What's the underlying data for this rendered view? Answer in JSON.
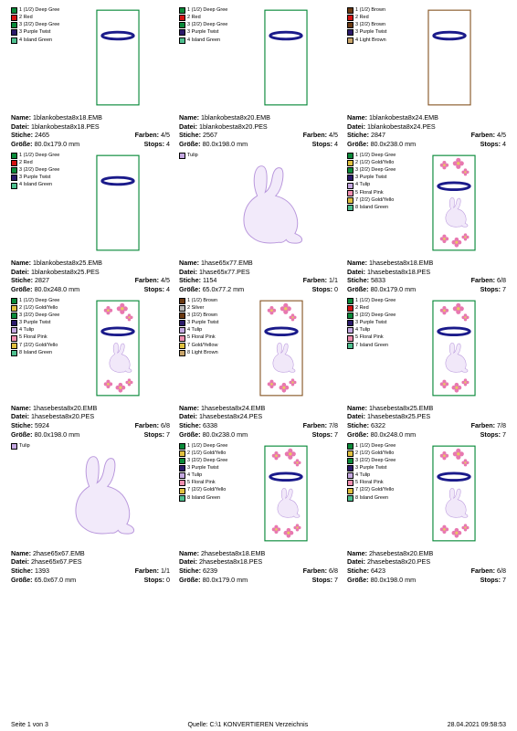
{
  "footer": {
    "page": "Seite 1 von 3",
    "source": "Quelle: C:\\1 KONVERTIEREN Verzeichnis",
    "timestamp": "28.04.2021 09:58:53"
  },
  "legends": {
    "A": [
      {
        "c": "#0a8a3a",
        "t": "1 (1/2) Deep Gree"
      },
      {
        "c": "#d41212",
        "t": "2 Red"
      },
      {
        "c": "#0a8a3a",
        "t": "3 (2/2) Deep Gree"
      },
      {
        "c": "#2b1a6b",
        "t": "3 Purple Twist"
      },
      {
        "c": "#4fbf8f",
        "t": "4 Island Green"
      }
    ],
    "B": [
      {
        "c": "#6b3a12",
        "t": "1 (1/2) Brown"
      },
      {
        "c": "#d41212",
        "t": "2 Red"
      },
      {
        "c": "#6b3a12",
        "t": "3 (2/2) Brown"
      },
      {
        "c": "#2b1a6b",
        "t": "3 Purple Twist"
      },
      {
        "c": "#c9a56b",
        "t": "4 Light Brown"
      }
    ],
    "T": [
      {
        "c": "#c4a8e0",
        "t": "Tulip"
      }
    ],
    "C8": [
      {
        "c": "#0a8a3a",
        "t": "1 (1/2) Deep Gree"
      },
      {
        "c": "#e0c040",
        "t": "2 (1/2) Gold/Yello"
      },
      {
        "c": "#0a8a3a",
        "t": "3 (2/2) Deep Gree"
      },
      {
        "c": "#2b1a6b",
        "t": "3 Purple Twist"
      },
      {
        "c": "#c4a8e0",
        "t": "4 Tulip"
      },
      {
        "c": "#f08fb0",
        "t": "5 Floral Pink"
      },
      {
        "c": "#e0c040",
        "t": "7 (2/2) Gold/Yello"
      },
      {
        "c": "#4fbf8f",
        "t": "8 Island Green"
      }
    ],
    "C7": [
      {
        "c": "#0a8a3a",
        "t": "1 (1/2) Deep Gree"
      },
      {
        "c": "#d41212",
        "t": "2 Red"
      },
      {
        "c": "#0a8a3a",
        "t": "3 (2/2) Deep Gree"
      },
      {
        "c": "#2b1a6b",
        "t": "3 Purple Twist"
      },
      {
        "c": "#c4a8e0",
        "t": "4 Tulip"
      },
      {
        "c": "#f08fb0",
        "t": "5 Floral Pink"
      },
      {
        "c": "#4fbf8f",
        "t": "7 Island Green"
      }
    ],
    "D": [
      {
        "c": "#6b3a12",
        "t": "1 (1/2) Brown"
      },
      {
        "c": "#b8b8b8",
        "t": "2 Silver"
      },
      {
        "c": "#6b3a12",
        "t": "3 (2/2) Brown"
      },
      {
        "c": "#2b1a6b",
        "t": "3 Purple Twist"
      },
      {
        "c": "#c4a8e0",
        "t": "4 Tulip"
      },
      {
        "c": "#f08fb0",
        "t": "5 Floral Pink"
      },
      {
        "c": "#e0c040",
        "t": "7 Gold/Yellow"
      },
      {
        "c": "#c9a56b",
        "t": "8 Light Brown"
      }
    ]
  },
  "cells": [
    {
      "legend": "A",
      "thumb": "ring_tall",
      "border": "#0a8a3a",
      "nameEmb": "1blankobesta8x18.EMB",
      "datei": "1blankobesta8x18.PES",
      "stiche": "2465",
      "farben": "4/5",
      "groesse": "80.0x179.0 mm",
      "stops": "4"
    },
    {
      "legend": "A",
      "thumb": "ring_tall",
      "border": "#0a8a3a",
      "nameEmb": "1blankobesta8x20.EMB",
      "datei": "1blankobesta8x20.PES",
      "stiche": "2567",
      "farben": "4/5",
      "groesse": "80.0x198.0 mm",
      "stops": "4"
    },
    {
      "legend": "B",
      "thumb": "ring_tall",
      "border": "#8a5a2a",
      "nameEmb": "1blankobesta8x24.EMB",
      "datei": "1blankobesta8x24.PES",
      "stiche": "2847",
      "farben": "4/5",
      "groesse": "80.0x238.0 mm",
      "stops": "4"
    },
    {
      "legend": "A",
      "thumb": "ring_tall",
      "border": "#0a8a3a",
      "nameEmb": "1blankobesta8x25.EMB",
      "datei": "1blankobesta8x25.PES",
      "stiche": "2827",
      "farben": "4/5",
      "groesse": "80.0x248.0 mm",
      "stops": "4"
    },
    {
      "legend": "T",
      "thumb": "bunny_big",
      "border": "none",
      "nameEmb": "1hase65x77.EMB",
      "datei": "1hase65x77.PES",
      "stiche": "1154",
      "farben": "1/1",
      "groesse": "65.0x77.2 mm",
      "stops": "0"
    },
    {
      "legend": "C8",
      "thumb": "bunny_flowers",
      "border": "#0a8a3a",
      "nameEmb": "1hasebesta8x18.EMB",
      "datei": "1hasebesta8x18.PES",
      "stiche": "5833",
      "farben": "6/8",
      "groesse": "80.0x179.0 mm",
      "stops": "7"
    },
    {
      "legend": "C8",
      "thumb": "bunny_flowers",
      "border": "#0a8a3a",
      "nameEmb": "1hasebesta8x20.EMB",
      "datei": "1hasebesta8x20.PES",
      "stiche": "5924",
      "farben": "6/8",
      "groesse": "80.0x198.0 mm",
      "stops": "7"
    },
    {
      "legend": "D",
      "thumb": "bunny_flowers",
      "border": "#8a5a2a",
      "nameEmb": "1hasebesta8x24.EMB",
      "datei": "1hasebesta8x24.PES",
      "stiche": "6338",
      "farben": "7/8",
      "groesse": "80.0x238.0 mm",
      "stops": "7"
    },
    {
      "legend": "C7",
      "thumb": "bunny_flowers",
      "border": "#0a8a3a",
      "nameEmb": "1hasebesta8x25.EMB",
      "datei": "1hasebesta8x25.PES",
      "stiche": "6322",
      "farben": "7/8",
      "groesse": "80.0x248.0 mm",
      "stops": "7"
    },
    {
      "legend": "T",
      "thumb": "bunny_big",
      "border": "none",
      "nameEmb": "2hase65x67.EMB",
      "datei": "2hase65x67.PES",
      "stiche": "1393",
      "farben": "1/1",
      "groesse": "65.0x67.0 mm",
      "stops": "0"
    },
    {
      "legend": "C8",
      "thumb": "bunny_flowers",
      "border": "#0a8a3a",
      "nameEmb": "2hasebesta8x18.EMB",
      "datei": "2hasebesta8x18.PES",
      "stiche": "6239",
      "farben": "6/8",
      "groesse": "80.0x179.0 mm",
      "stops": "7"
    },
    {
      "legend": "C8",
      "thumb": "bunny_flowers",
      "border": "#0a8a3a",
      "nameEmb": "2hasebesta8x20.EMB",
      "datei": "2hasebesta8x20.PES",
      "stiche": "6423",
      "farben": "6/8",
      "groesse": "80.0x198.0 mm",
      "stops": "7"
    }
  ],
  "labels": {
    "name": "Name:",
    "datei": "Datei:",
    "stiche": "Stiche:",
    "farben": "Farben:",
    "groesse": "Größe:",
    "stops": "Stops:"
  }
}
